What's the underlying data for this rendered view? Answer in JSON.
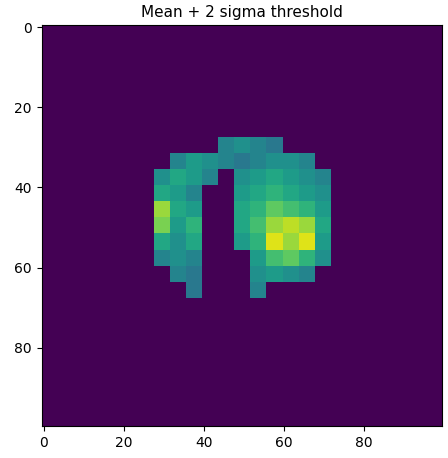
{
  "chart_data": {
    "type": "heatmap",
    "title": "Mean + 2 sigma threshold",
    "color": "viridis",
    "cell_range": [
      0,
      1
    ],
    "xlim": [
      -0.5,
      99.5
    ],
    "ylim": [
      99.5,
      -0.5
    ],
    "xticks": [
      0,
      20,
      40,
      60,
      80
    ],
    "yticks": [
      0,
      20,
      40,
      60,
      80
    ],
    "cells": [
      [
        0,
        0,
        0,
        0,
        0,
        0,
        0,
        0,
        0,
        0,
        0,
        0,
        0,
        0,
        0,
        0,
        0,
        0,
        0,
        0,
        0,
        0,
        0,
        0,
        0
      ],
      [
        0,
        0,
        0,
        0,
        0,
        0,
        0,
        0,
        0,
        0,
        0,
        0,
        0,
        0,
        0,
        0,
        0,
        0,
        0,
        0,
        0,
        0,
        0,
        0,
        0
      ],
      [
        0,
        0,
        0,
        0,
        0,
        0,
        0,
        0,
        0,
        0,
        0,
        0,
        0,
        0,
        0,
        0,
        0,
        0,
        0,
        0,
        0,
        0,
        0,
        0,
        0
      ],
      [
        0,
        0,
        0,
        0,
        0,
        0,
        0,
        0,
        0,
        0,
        0,
        0,
        0,
        0,
        0,
        0,
        0,
        0,
        0,
        0,
        0,
        0,
        0,
        0,
        0
      ],
      [
        0,
        0,
        0,
        0,
        0,
        0,
        0,
        0,
        0,
        0,
        0,
        0,
        0,
        0,
        0,
        0,
        0,
        0,
        0,
        0,
        0,
        0,
        0,
        0,
        0
      ],
      [
        0,
        0,
        0,
        0,
        0,
        0,
        0,
        0,
        0,
        0,
        0,
        0,
        0,
        0,
        0,
        0,
        0,
        0,
        0,
        0,
        0,
        0,
        0,
        0,
        0
      ],
      [
        0,
        0,
        0,
        0,
        0,
        0,
        0,
        0,
        0,
        0,
        0,
        0,
        0,
        0,
        0,
        0,
        0,
        0,
        0,
        0,
        0,
        0,
        0,
        0,
        0
      ],
      [
        0,
        0,
        0,
        0,
        0,
        0,
        0,
        0,
        0,
        0,
        0,
        0.45,
        0.5,
        0.45,
        0.4,
        0,
        0,
        0,
        0,
        0,
        0,
        0,
        0,
        0,
        0
      ],
      [
        0,
        0,
        0,
        0,
        0,
        0,
        0,
        0,
        0.45,
        0.55,
        0.5,
        0.45,
        0.4,
        0.45,
        0.5,
        0.5,
        0.45,
        0,
        0,
        0,
        0,
        0,
        0,
        0,
        0
      ],
      [
        0,
        0,
        0,
        0,
        0,
        0,
        0,
        0.5,
        0.6,
        0.55,
        0.45,
        0,
        0.5,
        0.55,
        0.6,
        0.55,
        0.5,
        0.45,
        0,
        0,
        0,
        0,
        0,
        0,
        0
      ],
      [
        0,
        0,
        0,
        0,
        0,
        0,
        0,
        0.6,
        0.55,
        0.45,
        0,
        0,
        0.55,
        0.6,
        0.65,
        0.6,
        0.55,
        0.5,
        0,
        0,
        0,
        0,
        0,
        0,
        0
      ],
      [
        0,
        0,
        0,
        0,
        0,
        0,
        0,
        0.85,
        0.6,
        0.55,
        0,
        0,
        0.6,
        0.65,
        0.75,
        0.7,
        0.65,
        0.55,
        0,
        0,
        0,
        0,
        0,
        0,
        0
      ],
      [
        0,
        0,
        0,
        0,
        0,
        0,
        0,
        0.8,
        0.55,
        0.65,
        0,
        0,
        0.6,
        0.7,
        0.85,
        0.9,
        0.85,
        0.6,
        0,
        0,
        0,
        0,
        0,
        0,
        0
      ],
      [
        0,
        0,
        0,
        0,
        0,
        0,
        0,
        0.6,
        0.5,
        0.6,
        0,
        0,
        0.55,
        0.65,
        0.95,
        0.85,
        0.95,
        0.55,
        0,
        0,
        0,
        0,
        0,
        0,
        0
      ],
      [
        0,
        0,
        0,
        0,
        0,
        0,
        0,
        0.45,
        0.5,
        0.45,
        0,
        0,
        0,
        0.55,
        0.7,
        0.75,
        0.65,
        0.5,
        0,
        0,
        0,
        0,
        0,
        0,
        0
      ],
      [
        0,
        0,
        0,
        0,
        0,
        0,
        0,
        0,
        0.45,
        0.4,
        0,
        0,
        0,
        0.5,
        0.55,
        0.5,
        0.45,
        0,
        0,
        0,
        0,
        0,
        0,
        0,
        0
      ],
      [
        0,
        0,
        0,
        0,
        0,
        0,
        0,
        0,
        0,
        0.4,
        0,
        0,
        0,
        0.45,
        0,
        0,
        0,
        0,
        0,
        0,
        0,
        0,
        0,
        0,
        0
      ],
      [
        0,
        0,
        0,
        0,
        0,
        0,
        0,
        0,
        0,
        0,
        0,
        0,
        0,
        0,
        0,
        0,
        0,
        0,
        0,
        0,
        0,
        0,
        0,
        0,
        0
      ],
      [
        0,
        0,
        0,
        0,
        0,
        0,
        0,
        0,
        0,
        0,
        0,
        0,
        0,
        0,
        0,
        0,
        0,
        0,
        0,
        0,
        0,
        0,
        0,
        0,
        0
      ],
      [
        0,
        0,
        0,
        0,
        0,
        0,
        0,
        0,
        0,
        0,
        0,
        0,
        0,
        0,
        0,
        0,
        0,
        0,
        0,
        0,
        0,
        0,
        0,
        0,
        0
      ],
      [
        0,
        0,
        0,
        0,
        0,
        0,
        0,
        0,
        0,
        0,
        0,
        0,
        0,
        0,
        0,
        0,
        0,
        0,
        0,
        0,
        0,
        0,
        0,
        0,
        0
      ],
      [
        0,
        0,
        0,
        0,
        0,
        0,
        0,
        0,
        0,
        0,
        0,
        0,
        0,
        0,
        0,
        0,
        0,
        0,
        0,
        0,
        0,
        0,
        0,
        0,
        0
      ],
      [
        0,
        0,
        0,
        0,
        0,
        0,
        0,
        0,
        0,
        0,
        0,
        0,
        0,
        0,
        0,
        0,
        0,
        0,
        0,
        0,
        0,
        0,
        0,
        0,
        0
      ],
      [
        0,
        0,
        0,
        0,
        0,
        0,
        0,
        0,
        0,
        0,
        0,
        0,
        0,
        0,
        0,
        0,
        0,
        0,
        0,
        0,
        0,
        0,
        0,
        0,
        0
      ],
      [
        0,
        0,
        0,
        0,
        0,
        0,
        0,
        0,
        0,
        0,
        0,
        0,
        0,
        0,
        0,
        0,
        0,
        0,
        0,
        0,
        0,
        0,
        0,
        0,
        0
      ]
    ]
  }
}
